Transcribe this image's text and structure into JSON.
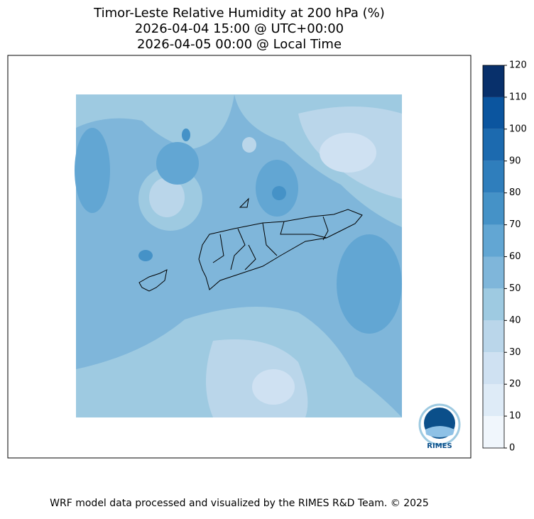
{
  "title": [
    "Timor-Leste Relative Humidity at 200 hPa (%)",
    "2026-04-04 15:00 @ UTC+00:00",
    "2026-04-05 00:00 @ Local Time"
  ],
  "colorbar": {
    "ticks": [
      0,
      10,
      20,
      30,
      40,
      50,
      60,
      70,
      80,
      90,
      100,
      110,
      120
    ],
    "colors": [
      "#f0f6fc",
      "#deebf7",
      "#cfe1f2",
      "#bad6ea",
      "#9ecae1",
      "#7fb6da",
      "#62a6d3",
      "#4592c7",
      "#2f7ebc",
      "#1c6aaf",
      "#0b559f",
      "#08306b"
    ]
  },
  "logo": "RIMES",
  "footer": "WRF model data processed and visualized by the RIMES R&D Team. © 2025"
}
